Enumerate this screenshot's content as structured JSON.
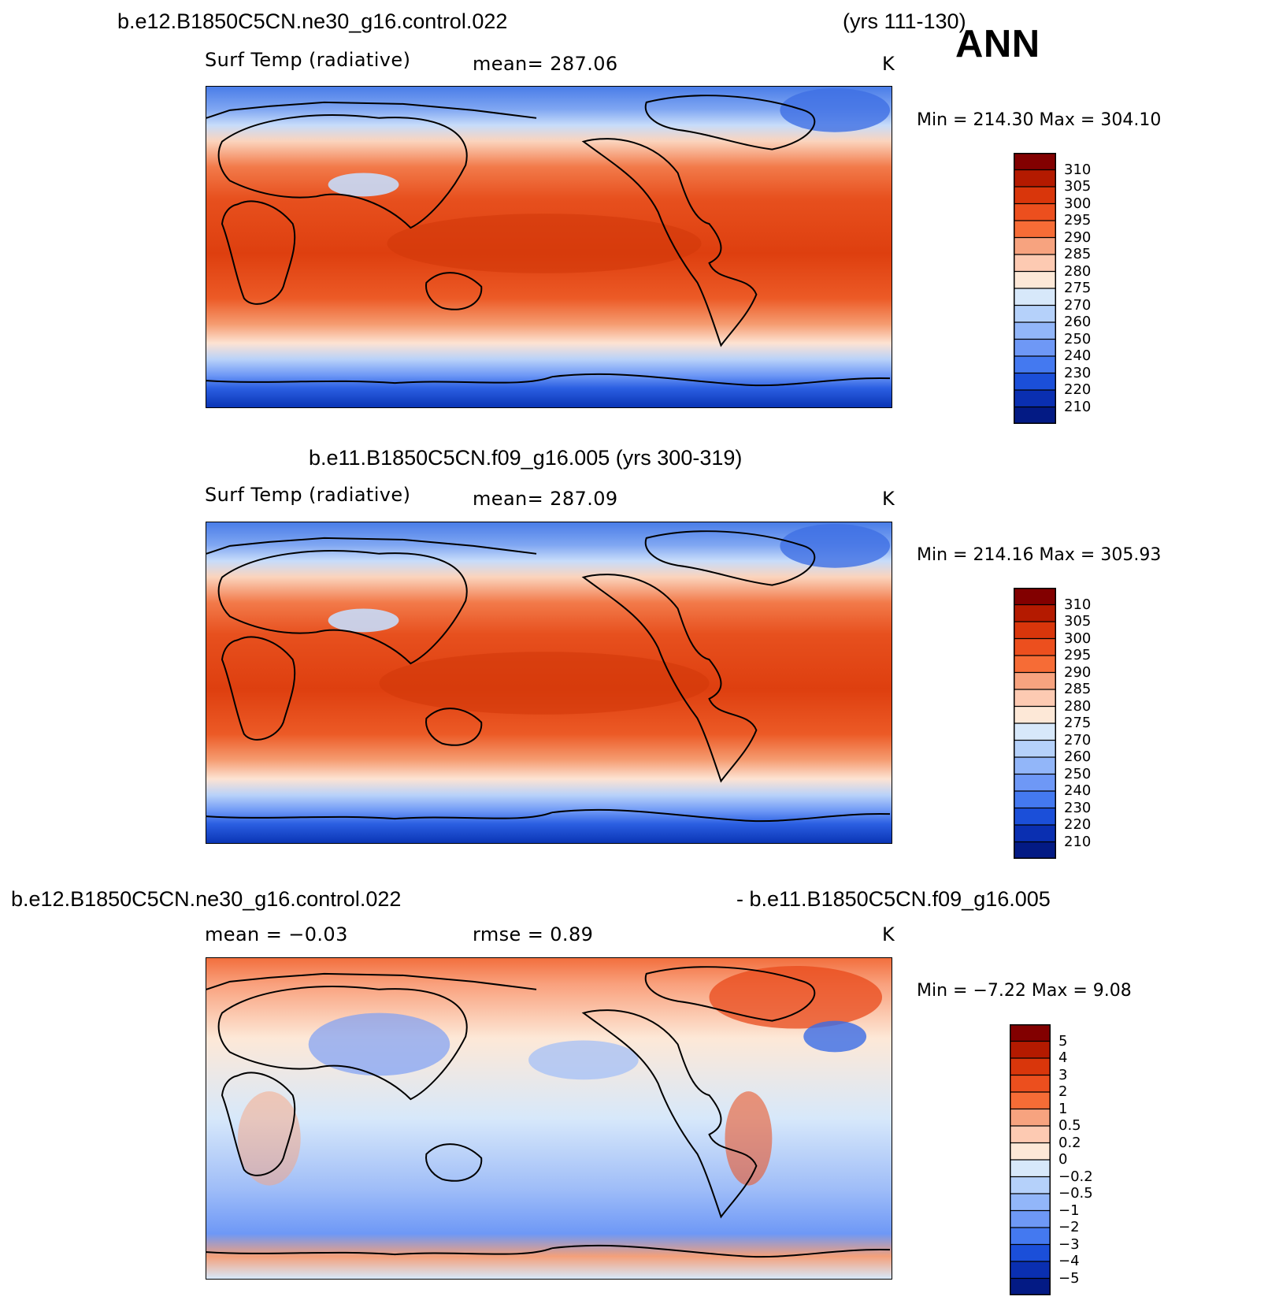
{
  "season": "ANN",
  "units": "K",
  "panels": [
    {
      "title_left": "b.e12.B1850C5CN.ne30_g16.control.022",
      "title_right": "(yrs 111-130)",
      "sub_left": "Surf Temp (radiative)",
      "sub_mid": "mean=  287.06",
      "min_max": "Min  =  214.30  Max  =  304.10",
      "colorbar_labels": [
        "310",
        "305",
        "300",
        "295",
        "290",
        "285",
        "280",
        "275",
        "270",
        "260",
        "250",
        "240",
        "230",
        "220",
        "210"
      ],
      "colorbar_colors": [
        "#820000",
        "#b41a00",
        "#d9360b",
        "#ec4f1e",
        "#f66c36",
        "#f7a37f",
        "#fdcab2",
        "#fde8d7",
        "#d7e8fa",
        "#b5d1fa",
        "#92b6f9",
        "#6e98f6",
        "#4479f0",
        "#1b4fd9",
        "#0a2fb1",
        "#031a84"
      ]
    },
    {
      "title_left": "b.e11.B1850C5CN.f09_g16.005 (yrs 300-319)",
      "sub_left": "Surf Temp (radiative)",
      "sub_mid": "mean=  287.09",
      "min_max": "Min  =  214.16  Max  =  305.93",
      "colorbar_labels": [
        "310",
        "305",
        "300",
        "295",
        "290",
        "285",
        "280",
        "275",
        "270",
        "260",
        "250",
        "240",
        "230",
        "220",
        "210"
      ],
      "colorbar_colors": [
        "#820000",
        "#b41a00",
        "#d9360b",
        "#ec4f1e",
        "#f66c36",
        "#f7a37f",
        "#fdcab2",
        "#fde8d7",
        "#d7e8fa",
        "#b5d1fa",
        "#92b6f9",
        "#6e98f6",
        "#4479f0",
        "#1b4fd9",
        "#0a2fb1",
        "#031a84"
      ]
    },
    {
      "title_left": "b.e12.B1850C5CN.ne30_g16.control.022",
      "title_right": "- b.e11.B1850C5CN.f09_g16.005",
      "sub_left": "mean =   −0.03",
      "sub_mid": "rmse =     0.89",
      "min_max": "Min  =    −7.22  Max  =     9.08",
      "colorbar_labels": [
        "5",
        "4",
        "3",
        "2",
        "1",
        "0.5",
        "0.2",
        "0",
        "−0.2",
        "−0.5",
        "−1",
        "−2",
        "−3",
        "−4",
        "−5"
      ],
      "colorbar_colors": [
        "#820000",
        "#b41a00",
        "#d9360b",
        "#ec4f1e",
        "#f66c36",
        "#f7a37f",
        "#fdcab2",
        "#fde8d7",
        "#d7e8fa",
        "#b5d1fa",
        "#92b6f9",
        "#6e98f6",
        "#4479f0",
        "#1b4fd9",
        "#0a2fb1",
        "#031a84"
      ]
    }
  ]
}
